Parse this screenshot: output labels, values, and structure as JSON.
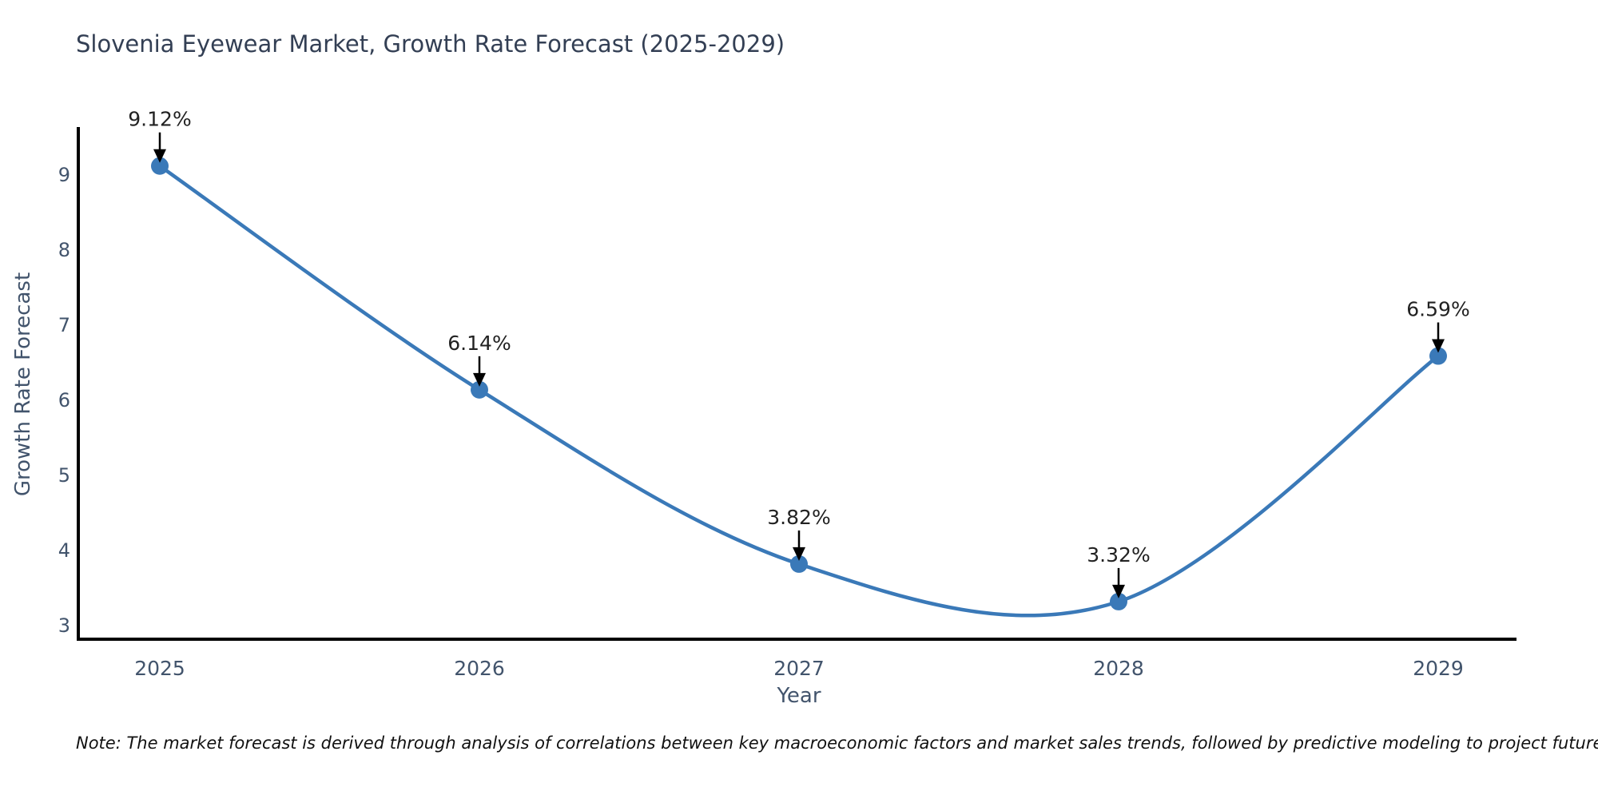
{
  "title": "Slovenia Eyewear Market, Growth Rate Forecast (2025-2029)",
  "note": "Note: The market forecast is derived through analysis of correlations between key macroeconomic factors and market sales trends, followed by predictive modeling to project future sales.",
  "chart_data": {
    "type": "line",
    "title": "Slovenia Eyewear Market, Growth Rate Forecast (2025-2029)",
    "xlabel": "Year",
    "ylabel": "Growth Rate Forecast",
    "x": [
      2025,
      2026,
      2027,
      2028,
      2029
    ],
    "values": [
      9.12,
      6.14,
      3.82,
      3.32,
      6.59
    ],
    "point_labels": [
      "9.12%",
      "6.14%",
      "3.82%",
      "3.32%",
      "6.59%"
    ],
    "x_tick_labels": [
      "2025",
      "2026",
      "2027",
      "2028",
      "2029"
    ],
    "y_ticks": [
      3,
      4,
      5,
      6,
      7,
      8,
      9
    ],
    "ylim": [
      2.82,
      9.64
    ],
    "line_shape": "spline",
    "grid": false,
    "legend": "none",
    "annotations_have_arrows": true,
    "colors": {
      "line": "#3a79b8",
      "marker": "#3a79b8",
      "axis": "#000000",
      "arrow": "#000000",
      "tick_text": "#42546c",
      "axis_title_text": "#42546c",
      "title_text": "#333f54",
      "annotation_text": "#222222",
      "background": "#ffffff"
    }
  }
}
